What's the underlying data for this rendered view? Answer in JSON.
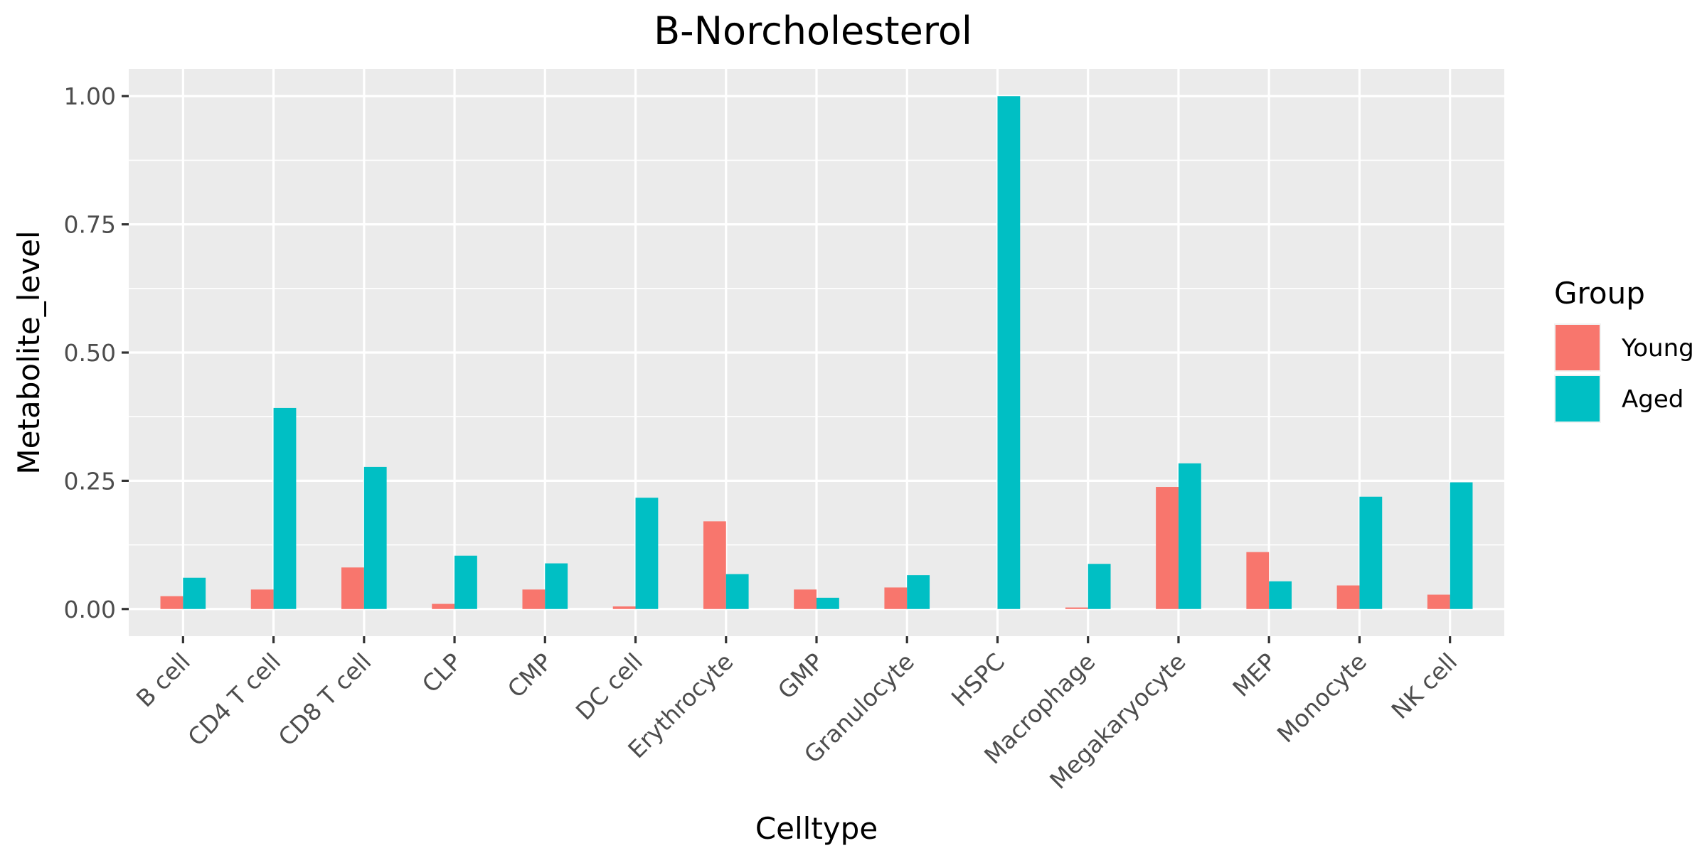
{
  "chart_data": {
    "type": "bar",
    "title": "B-Norcholesterol",
    "xlabel": "Celltype",
    "ylabel": "Metabolite_level",
    "ylim": [
      -0.053,
      1.053
    ],
    "yticks": [
      "0.00",
      "0.25",
      "0.50",
      "0.75",
      "1.00"
    ],
    "ytick_values": [
      0,
      0.25,
      0.5,
      0.75,
      1.0
    ],
    "grid": true,
    "legend": {
      "title": "Group",
      "placement": "right"
    },
    "categories": [
      "B cell",
      "CD4 T cell",
      "CD8 T cell",
      "CLP",
      "CMP",
      "DC cell",
      "Erythrocyte",
      "GMP",
      "Granulocyte",
      "HSPC",
      "Macrophage",
      "Megakaryocyte",
      "MEP",
      "Monocyte",
      "NK cell"
    ],
    "series": [
      {
        "name": "Young",
        "color": "#f8766d",
        "values": [
          0.025,
          0.038,
          0.081,
          0.01,
          0.038,
          0.005,
          0.171,
          0.038,
          0.042,
          0.0,
          0.003,
          0.238,
          0.111,
          0.046,
          0.028
        ]
      },
      {
        "name": "Aged",
        "color": "#00bfc4",
        "values": [
          0.061,
          0.392,
          0.277,
          0.104,
          0.089,
          0.217,
          0.068,
          0.022,
          0.066,
          1.0,
          0.088,
          0.284,
          0.054,
          0.219,
          0.247
        ]
      }
    ]
  }
}
